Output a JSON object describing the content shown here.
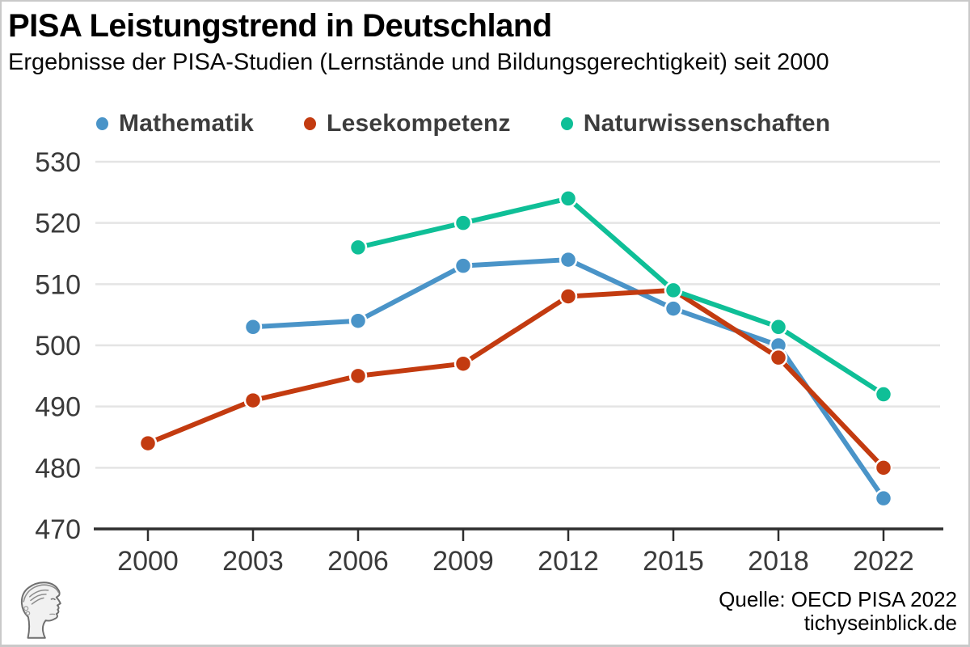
{
  "header": {
    "title": "PISA Leistungstrend in Deutschland",
    "subtitle": "Ergebnisse der PISA-Studien (Lernstände und Bildungsgerechtigkeit) seit 2000"
  },
  "footer": {
    "source": "Quelle: OECD PISA 2022",
    "website": "tichyseinblick.de",
    "logo_icon": "classical-head-logo"
  },
  "chart_data": {
    "type": "line",
    "title": "PISA Leistungstrend in Deutschland",
    "subtitle": "Ergebnisse der PISA-Studien (Lernstände und Bildungsgerechtigkeit) seit 2000",
    "x_categories": [
      "2000",
      "2003",
      "2006",
      "2009",
      "2012",
      "2015",
      "2018",
      "2022"
    ],
    "xlabel": "",
    "ylabel": "",
    "ylim": [
      470,
      530
    ],
    "yticks": [
      470,
      480,
      490,
      500,
      510,
      520,
      530
    ],
    "grid": "horizontal-light",
    "legend_position": "top-left",
    "marker": "circle",
    "series": [
      {
        "name": "Mathematik",
        "color": "#4a94c8",
        "points": {
          "2003": 503,
          "2006": 504,
          "2009": 513,
          "2012": 514,
          "2015": 506,
          "2018": 500,
          "2022": 475
        }
      },
      {
        "name": "Lesekompetenz",
        "color": "#c33b10",
        "points": {
          "2000": 484,
          "2003": 491,
          "2006": 495,
          "2009": 497,
          "2012": 508,
          "2015": 509,
          "2018": 498,
          "2022": 480
        }
      },
      {
        "name": "Naturwissenschaften",
        "color": "#0fbf97",
        "points": {
          "2006": 516,
          "2009": 520,
          "2012": 524,
          "2015": 509,
          "2018": 503,
          "2022": 492
        }
      }
    ],
    "colors": {
      "axis": "#2e2e2e",
      "gridline": "#e4e4e4",
      "tick_label": "#3a3a3a"
    }
  }
}
